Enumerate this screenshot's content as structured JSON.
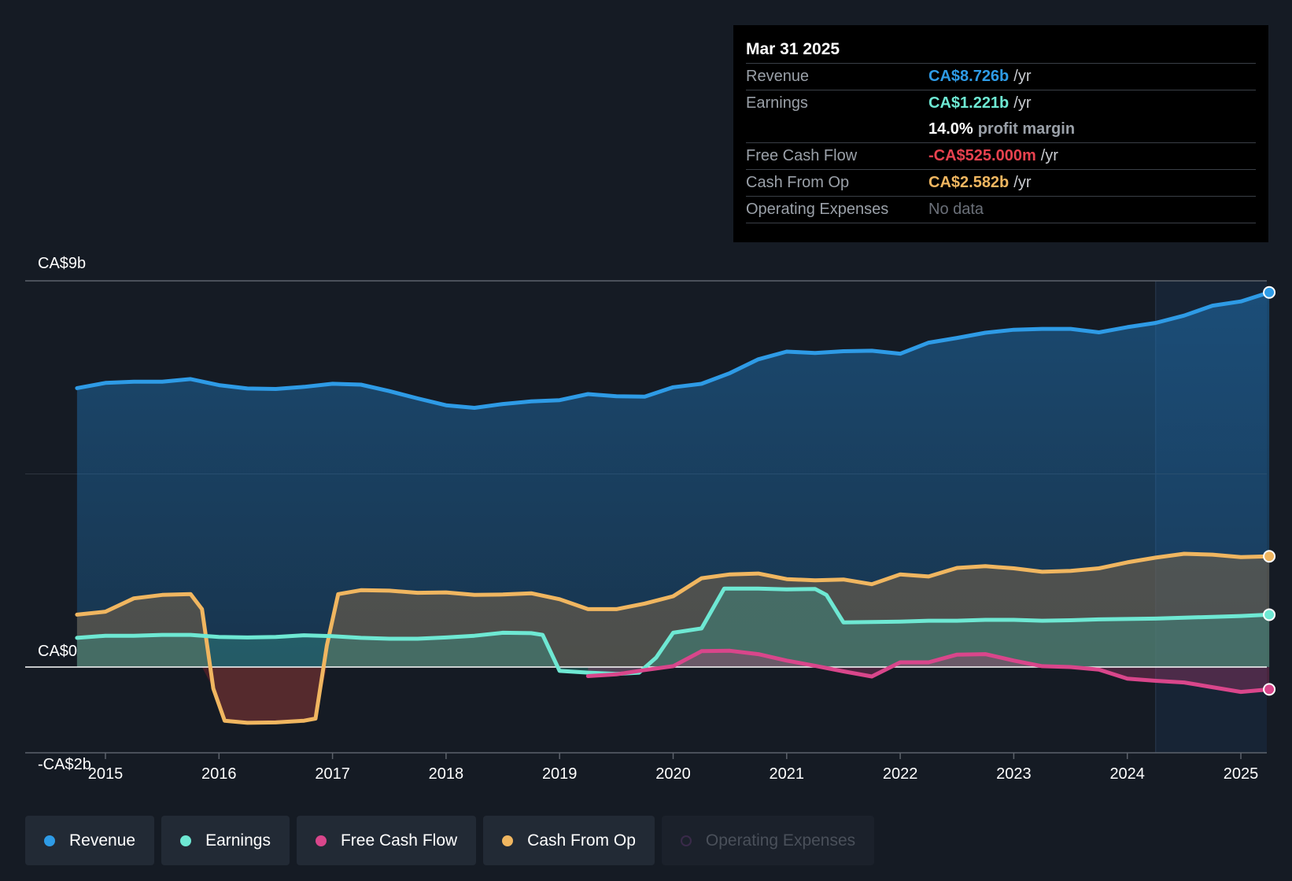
{
  "tooltip": {
    "date": "Mar 31 2025",
    "rows": [
      {
        "label": "Revenue",
        "value": "CA$8.726b",
        "unit": "/yr",
        "color": "#2e9be6"
      },
      {
        "label": "Earnings",
        "value": "CA$1.221b",
        "unit": "/yr",
        "color": "#6ee8d3"
      },
      {
        "label": "",
        "value": "14.0%",
        "unit": "profit margin",
        "color": "#ffffff"
      },
      {
        "label": "Free Cash Flow",
        "value": "-CA$525.000m",
        "unit": "/yr",
        "color": "#e8424f"
      },
      {
        "label": "Cash From Op",
        "value": "CA$2.582b",
        "unit": "/yr",
        "color": "#f0b660"
      },
      {
        "label": "Operating Expenses",
        "value": "No data",
        "unit": "",
        "color": "#6b7079"
      }
    ]
  },
  "legend": [
    {
      "label": "Revenue",
      "color": "#2e9be6",
      "active": true
    },
    {
      "label": "Earnings",
      "color": "#6ee8d3",
      "active": true
    },
    {
      "label": "Free Cash Flow",
      "color": "#d9468b",
      "active": true
    },
    {
      "label": "Cash From Op",
      "color": "#f0b660",
      "active": true
    },
    {
      "label": "Operating Expenses",
      "color": "#3a2a4a",
      "active": false
    }
  ],
  "chart_data": {
    "type": "area",
    "ylim": [
      -2,
      9
    ],
    "y_tick_labels": [
      {
        "value": 9,
        "label": "CA$9b"
      },
      {
        "value": 0,
        "label": "CA$0"
      },
      {
        "value": -2,
        "label": "-CA$2b"
      }
    ],
    "x_tick_labels": [
      "2015",
      "2016",
      "2017",
      "2018",
      "2019",
      "2020",
      "2021",
      "2022",
      "2023",
      "2024",
      "2025"
    ],
    "x_ticks": [
      2015,
      2016,
      2017,
      2018,
      2019,
      2020,
      2021,
      2022,
      2023,
      2024,
      2025
    ],
    "xlim": [
      2014.3,
      2025.25
    ],
    "forecast_start": 2024.25,
    "series": [
      {
        "name": "Revenue",
        "color": "#2e9be6",
        "x": [
          2014.75,
          2015.0,
          2015.25,
          2015.5,
          2015.75,
          2016.0,
          2016.25,
          2016.5,
          2016.75,
          2017.0,
          2017.25,
          2017.5,
          2017.75,
          2018.0,
          2018.25,
          2018.5,
          2018.75,
          2019.0,
          2019.25,
          2019.5,
          2019.75,
          2020.0,
          2020.25,
          2020.5,
          2020.75,
          2021.0,
          2021.25,
          2021.5,
          2021.75,
          2022.0,
          2022.25,
          2022.5,
          2022.75,
          2023.0,
          2023.25,
          2023.5,
          2023.75,
          2024.0,
          2024.25,
          2024.5,
          2024.75,
          2025.0,
          2025.25
        ],
        "values": [
          6.5,
          6.62,
          6.65,
          6.65,
          6.71,
          6.57,
          6.49,
          6.48,
          6.53,
          6.6,
          6.58,
          6.43,
          6.26,
          6.1,
          6.04,
          6.13,
          6.19,
          6.22,
          6.36,
          6.31,
          6.3,
          6.52,
          6.6,
          6.85,
          7.17,
          7.35,
          7.32,
          7.36,
          7.37,
          7.3,
          7.56,
          7.67,
          7.79,
          7.86,
          7.88,
          7.88,
          7.8,
          7.92,
          8.02,
          8.19,
          8.42,
          8.52,
          8.73
        ]
      },
      {
        "name": "Earnings",
        "color": "#6ee8d3",
        "x": [
          2014.75,
          2015.0,
          2015.25,
          2015.5,
          2015.75,
          2016.0,
          2016.25,
          2016.5,
          2016.75,
          2017.0,
          2017.25,
          2017.5,
          2017.75,
          2018.0,
          2018.25,
          2018.5,
          2018.75,
          2018.85,
          2019.0,
          2019.25,
          2019.5,
          2019.7,
          2019.85,
          2020.0,
          2020.25,
          2020.45,
          2020.75,
          2021.0,
          2021.25,
          2021.35,
          2021.5,
          2021.75,
          2022.0,
          2022.25,
          2022.5,
          2022.75,
          2023.0,
          2023.25,
          2023.5,
          2023.75,
          2024.0,
          2024.25,
          2024.5,
          2024.75,
          2025.0,
          2025.25
        ],
        "values": [
          0.68,
          0.73,
          0.73,
          0.75,
          0.75,
          0.7,
          0.69,
          0.7,
          0.74,
          0.72,
          0.68,
          0.66,
          0.66,
          0.69,
          0.73,
          0.8,
          0.79,
          0.75,
          -0.09,
          -0.13,
          -0.16,
          -0.13,
          0.22,
          0.8,
          0.9,
          1.83,
          1.83,
          1.81,
          1.82,
          1.68,
          1.04,
          1.05,
          1.06,
          1.08,
          1.08,
          1.1,
          1.1,
          1.08,
          1.09,
          1.11,
          1.12,
          1.13,
          1.15,
          1.17,
          1.19,
          1.22
        ]
      },
      {
        "name": "Free Cash Flow",
        "color": "#d9468b",
        "x": [
          2019.25,
          2019.5,
          2019.75,
          2020.0,
          2020.25,
          2020.5,
          2020.75,
          2021.0,
          2021.25,
          2021.5,
          2021.75,
          2022.0,
          2022.25,
          2022.5,
          2022.75,
          2023.0,
          2023.25,
          2023.5,
          2023.75,
          2024.0,
          2024.25,
          2024.5,
          2024.75,
          2025.0,
          2025.25
        ],
        "values": [
          -0.21,
          -0.17,
          -0.07,
          0.02,
          0.37,
          0.38,
          0.3,
          0.15,
          0.03,
          -0.1,
          -0.22,
          0.11,
          0.11,
          0.29,
          0.3,
          0.15,
          0.02,
          0.0,
          -0.06,
          -0.27,
          -0.32,
          -0.36,
          -0.47,
          -0.58,
          -0.52
        ]
      },
      {
        "name": "Cash From Op",
        "color": "#f0b660",
        "x": [
          2014.75,
          2015.0,
          2015.25,
          2015.5,
          2015.75,
          2015.85,
          2015.95,
          2016.05,
          2016.25,
          2016.5,
          2016.75,
          2016.85,
          2016.95,
          2017.05,
          2017.25,
          2017.5,
          2017.75,
          2018.0,
          2018.25,
          2018.5,
          2018.75,
          2019.0,
          2019.25,
          2019.5,
          2019.75,
          2020.0,
          2020.25,
          2020.5,
          2020.75,
          2021.0,
          2021.25,
          2021.5,
          2021.75,
          2022.0,
          2022.25,
          2022.5,
          2022.75,
          2023.0,
          2023.25,
          2023.5,
          2023.75,
          2024.0,
          2024.25,
          2024.5,
          2024.75,
          2025.0,
          2025.25
        ],
        "values": [
          1.22,
          1.29,
          1.6,
          1.68,
          1.7,
          1.35,
          -0.5,
          -1.25,
          -1.3,
          -1.29,
          -1.25,
          -1.2,
          0.5,
          1.7,
          1.79,
          1.78,
          1.73,
          1.74,
          1.68,
          1.69,
          1.72,
          1.58,
          1.35,
          1.35,
          1.48,
          1.65,
          2.07,
          2.16,
          2.18,
          2.05,
          2.02,
          2.04,
          1.93,
          2.16,
          2.11,
          2.31,
          2.35,
          2.3,
          2.22,
          2.24,
          2.3,
          2.44,
          2.55,
          2.64,
          2.62,
          2.56,
          2.58
        ]
      }
    ]
  }
}
